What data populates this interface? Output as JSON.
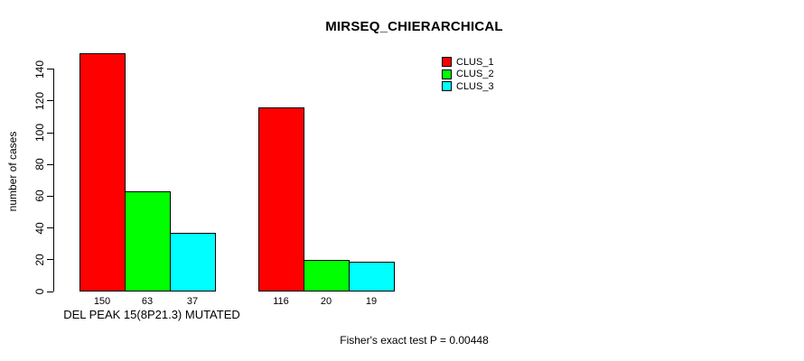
{
  "title": "MIRSEQ_CHIERARCHICAL",
  "chart_data": {
    "type": "bar",
    "title": "MIRSEQ_CHIERARCHICAL",
    "xlabel": "",
    "ylabel": "number of cases",
    "ylim": [
      0,
      150
    ],
    "yticks": [
      0,
      20,
      40,
      60,
      80,
      100,
      120,
      140
    ],
    "grid": false,
    "legend_position": "top-right",
    "legend": [
      {
        "label": "CLUS_1",
        "color": "#FF0000"
      },
      {
        "label": "CLUS_2",
        "color": "#00FF00"
      },
      {
        "label": "CLUS_3",
        "color": "#00FFFF"
      }
    ],
    "series_names": [
      "CLUS_1",
      "CLUS_2",
      "CLUS_3"
    ],
    "groups": [
      {
        "label": "DEL PEAK 15(8P21.3) MUTATED",
        "values": [
          150,
          63,
          37
        ]
      },
      {
        "label": "",
        "values": [
          116,
          20,
          19
        ]
      }
    ],
    "bar_value_labels": [
      150,
      63,
      37,
      116,
      20,
      19
    ],
    "annotation": "Fisher's exact test P = 0.00448"
  }
}
